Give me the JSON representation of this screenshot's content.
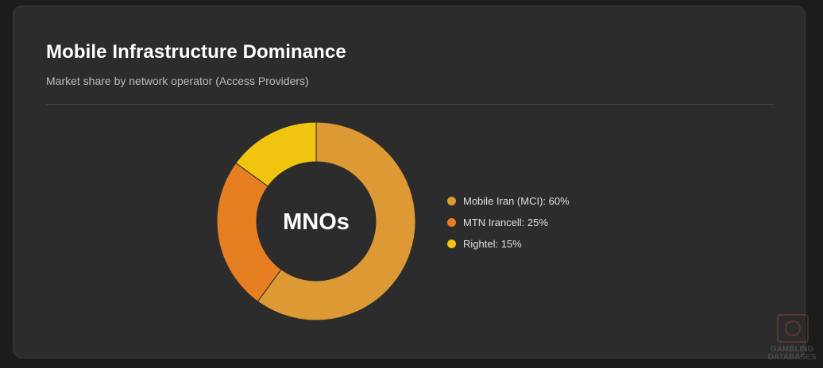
{
  "title": "Mobile Infrastructure Dominance",
  "subtitle": "Market share by network operator (Access Providers)",
  "chart_data": {
    "type": "pie",
    "donut": true,
    "center_label": "MNOs",
    "legend_position": "right",
    "categories": [
      "Mobile Iran (MCI)",
      "MTN Irancell",
      "Rightel"
    ],
    "values": [
      60,
      25,
      15
    ],
    "legend_labels": [
      "Mobile Iran (MCI): 60%",
      "MTN Irancell: 25%",
      "Rightel: 15%"
    ],
    "colors": [
      "#dd9933",
      "#e67e22",
      "#f1c40f"
    ]
  },
  "watermark": {
    "line1": "GAMBLING",
    "line2": "DATABASES"
  }
}
